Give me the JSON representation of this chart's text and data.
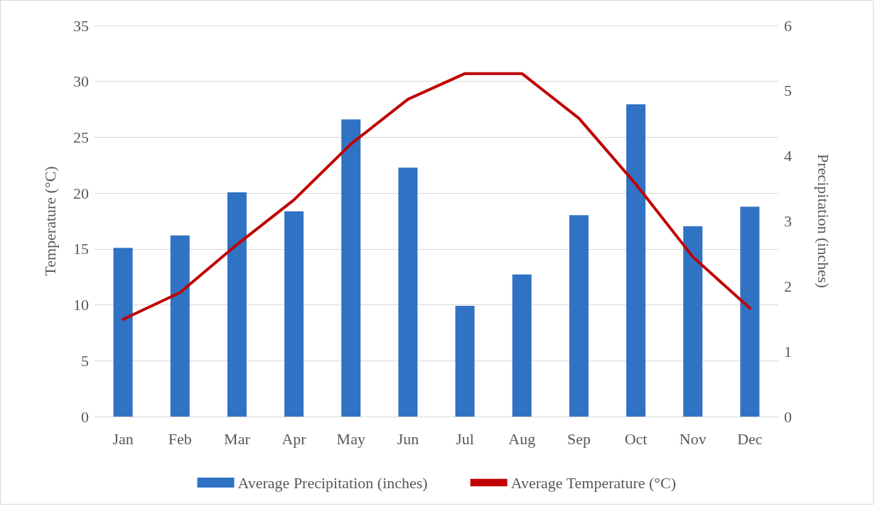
{
  "chart_data": {
    "type": "bar",
    "categories": [
      "Jan",
      "Feb",
      "Mar",
      "Apr",
      "May",
      "Jun",
      "Jul",
      "Aug",
      "Sep",
      "Oct",
      "Nov",
      "Dec"
    ],
    "series": [
      {
        "name": "Average Precipitation (inches)",
        "axis": "y2",
        "color": "#3072c4",
        "values": [
          2.59,
          2.78,
          3.44,
          3.15,
          4.56,
          3.82,
          1.7,
          2.18,
          3.09,
          4.79,
          2.92,
          3.22
        ]
      },
      {
        "name": "Average Temperature (°C)",
        "type": "line",
        "color": "#c00000",
        "values": [
          8.7,
          11.1,
          15.4,
          19.4,
          24.4,
          28.4,
          30.7,
          30.7,
          26.7,
          20.8,
          14.3,
          9.7
        ]
      }
    ],
    "ylabel": "Temperature (°C)",
    "y2label": "Precipitation (inches)",
    "ylim": [
      0,
      35
    ],
    "yticks": [
      0,
      5,
      10,
      15,
      20,
      25,
      30,
      35
    ],
    "y2lim": [
      0,
      6
    ],
    "y2ticks": [
      0,
      1,
      2,
      3,
      4,
      5,
      6
    ],
    "grid": "y",
    "legend": "bottom",
    "marker": "none",
    "line_style": "solid"
  }
}
